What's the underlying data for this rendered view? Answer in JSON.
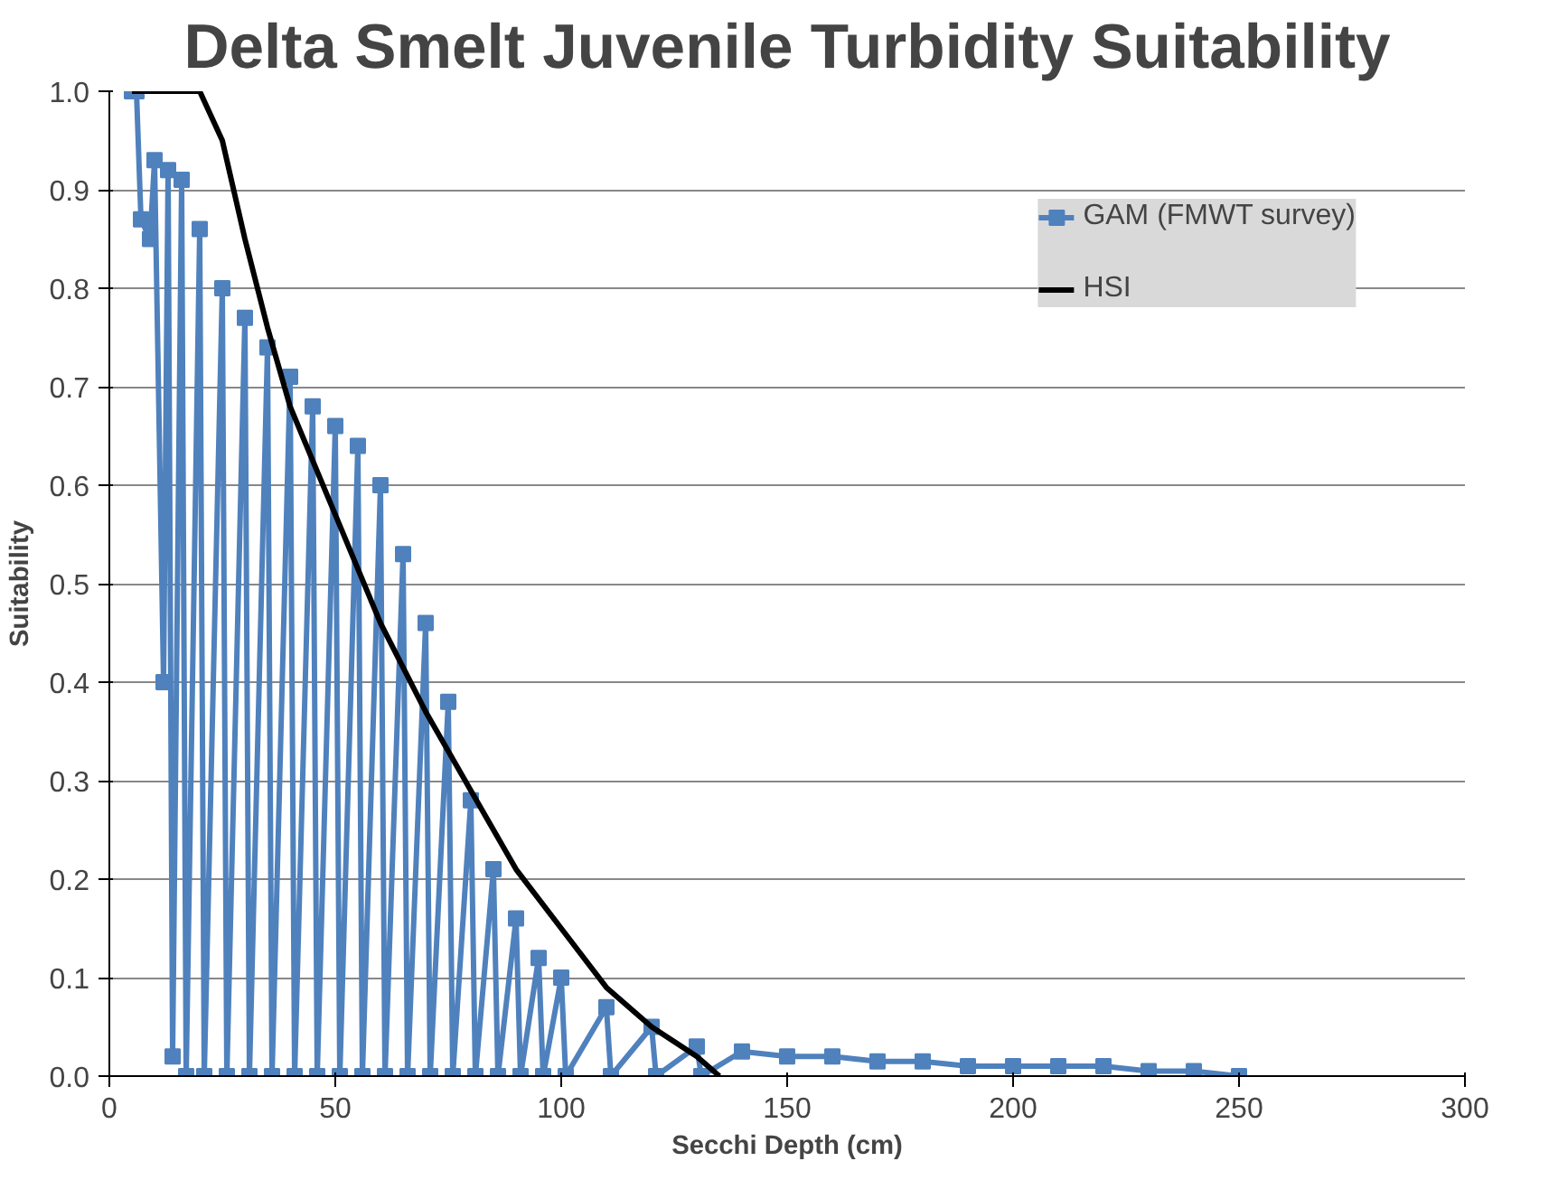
{
  "chart_data": {
    "type": "line",
    "title": "Delta Smelt Juvenile Turbidity Suitability",
    "xlabel": "Secchi Depth (cm)",
    "ylabel": "Suitability",
    "xlim": [
      0,
      300
    ],
    "xticks": [
      0,
      50,
      100,
      150,
      200,
      250,
      300
    ],
    "ylim": [
      0,
      1.0
    ],
    "yticks": [
      {
        "value": 0,
        "label": "0.0"
      },
      0.1,
      0.2,
      0.3,
      0.4,
      0.5,
      0.6,
      0.7,
      0.8,
      0.9,
      {
        "value": 1,
        "label": "1.0"
      }
    ],
    "grid": "y",
    "legend": "top right",
    "series": [
      {
        "name": "GAM (FMWT survey)",
        "color": "#4f81bd",
        "marker": "square",
        "x": [
          5,
          6,
          7,
          9,
          10,
          12,
          13,
          14,
          16,
          17,
          20,
          21,
          25,
          26,
          30,
          31,
          35,
          36,
          40,
          41,
          45,
          46,
          50,
          51,
          55,
          56,
          60,
          61,
          65,
          66,
          70,
          71,
          75,
          76,
          80,
          81,
          85,
          86,
          90,
          91,
          95,
          96,
          100,
          101,
          110,
          111,
          120,
          121,
          130,
          131,
          140,
          150,
          160,
          170,
          180,
          190,
          200,
          210,
          220,
          230,
          240,
          250
        ],
        "values": [
          1.0,
          1.0,
          0.87,
          0.85,
          0.93,
          0.4,
          0.92,
          0.02,
          0.91,
          0.0,
          0.86,
          0.0,
          0.8,
          0.0,
          0.77,
          0.0,
          0.74,
          0.0,
          0.71,
          0.0,
          0.68,
          0.0,
          0.66,
          0.0,
          0.64,
          0.0,
          0.6,
          0.0,
          0.53,
          0.0,
          0.46,
          0.0,
          0.38,
          0.0,
          0.28,
          0.0,
          0.21,
          0.0,
          0.16,
          0.0,
          0.12,
          0.0,
          0.1,
          0.0,
          0.07,
          0.0,
          0.05,
          0.0,
          0.03,
          0.0,
          0.025,
          0.02,
          0.02,
          0.015,
          0.015,
          0.01,
          0.01,
          0.01,
          0.01,
          0.005,
          0.005,
          0.0
        ]
      },
      {
        "name": "HSI",
        "color": "#000000",
        "marker": "none",
        "x": [
          5,
          20,
          25,
          30,
          35,
          40,
          50,
          60,
          70,
          80,
          90,
          100,
          110,
          120,
          130,
          135
        ],
        "values": [
          1.0,
          1.0,
          0.95,
          0.85,
          0.76,
          0.68,
          0.57,
          0.46,
          0.37,
          0.29,
          0.21,
          0.15,
          0.09,
          0.05,
          0.02,
          0.0
        ]
      }
    ]
  }
}
